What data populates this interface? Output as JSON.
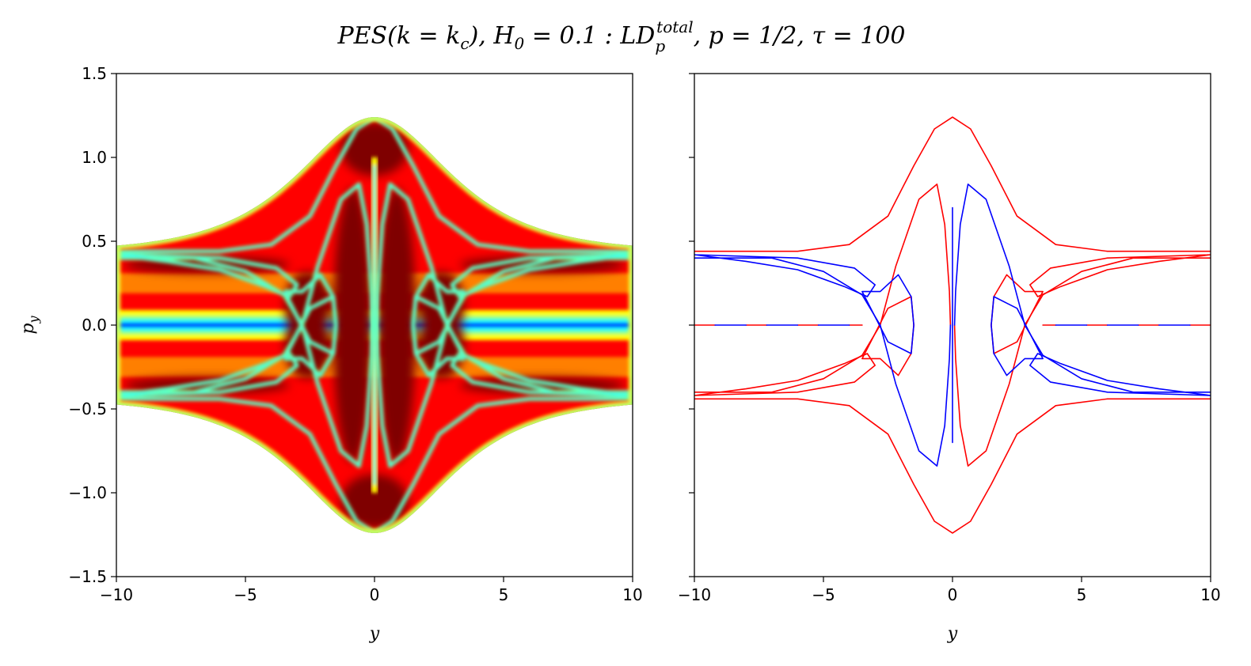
{
  "figure": {
    "title_parts": {
      "pes": "PES",
      "k_open": "(k = k",
      "k_sub": "c",
      "k_close": "), H",
      "h_sub": "0",
      "h_eq": " = 0.1 : LD",
      "ld_sub": "p",
      "ld_sup": "total",
      "rest": ", p = 1/2, τ = 100"
    }
  },
  "chart_data": [
    {
      "type": "heatmap",
      "xlabel": "y",
      "ylabel": "p",
      "ylabel_sub": "y",
      "xlim": [
        -10,
        10
      ],
      "ylim": [
        -1.5,
        1.5
      ],
      "xticks": [
        -10,
        -5,
        0,
        5,
        10
      ],
      "xtick_labels": [
        "−10",
        "−5",
        "0",
        "5",
        "10"
      ],
      "yticks": [
        1.5,
        1.0,
        0.5,
        0.0,
        -0.5,
        -1.0,
        -1.5
      ],
      "ytick_labels": [
        "1.5",
        "1.0",
        "0.5",
        "0.0",
        "−0.5",
        "−1.0",
        "−1.5"
      ],
      "colormap": "jet",
      "energy_boundary": {
        "p_asymptote": 0.44,
        "p_peak": 1.24,
        "y_width": 2.6
      },
      "color_stops": [
        "#00007f",
        "#0000ff",
        "#00ffff",
        "#7fff7f",
        "#ffff00",
        "#ff7f00",
        "#ff0000",
        "#7f0000"
      ]
    },
    {
      "type": "scatter",
      "xlabel": "y",
      "xlim": [
        -10,
        10
      ],
      "ylim": [
        -1.5,
        1.5
      ],
      "xticks": [
        -10,
        -5,
        0,
        5,
        10
      ],
      "xtick_labels": [
        "−10",
        "−5",
        "0",
        "5",
        "10"
      ],
      "yticks": [
        1.5,
        1.0,
        0.5,
        0.0,
        -0.5,
        -1.0,
        -1.5
      ],
      "grid": false,
      "colors": {
        "stable": "#0000ff",
        "unstable": "#ff0000"
      },
      "series": [
        {
          "color": "#ff0000",
          "curves": [
            [
              [
                -10,
                0.44
              ],
              [
                -6,
                0.44
              ],
              [
                -4,
                0.48
              ],
              [
                -2.5,
                0.65
              ],
              [
                -1.5,
                0.95
              ],
              [
                -0.7,
                1.17
              ],
              [
                0,
                1.24
              ],
              [
                0.7,
                1.17
              ],
              [
                1.5,
                0.95
              ],
              [
                2.5,
                0.65
              ],
              [
                4,
                0.48
              ],
              [
                6,
                0.44
              ],
              [
                10,
                0.44
              ]
            ],
            [
              [
                -10,
                -0.44
              ],
              [
                -6,
                -0.44
              ],
              [
                -4,
                -0.48
              ],
              [
                -2.5,
                -0.65
              ],
              [
                -1.5,
                -0.95
              ],
              [
                -0.7,
                -1.17
              ],
              [
                0,
                -1.24
              ],
              [
                0.7,
                -1.17
              ],
              [
                1.5,
                -0.95
              ],
              [
                2.5,
                -0.65
              ],
              [
                4,
                -0.48
              ],
              [
                6,
                -0.44
              ],
              [
                10,
                -0.44
              ]
            ],
            [
              [
                -10,
                -0.4
              ],
              [
                -7,
                -0.4
              ],
              [
                -5,
                -0.32
              ],
              [
                -3.5,
                -0.18
              ],
              [
                -2.8,
                0
              ],
              [
                -2.2,
                0.35
              ],
              [
                -1.3,
                0.75
              ],
              [
                -0.6,
                0.84
              ],
              [
                -0.3,
                0.6
              ],
              [
                -0.12,
                0.2
              ],
              [
                -0.08,
                0
              ]
            ],
            [
              [
                -10,
                -0.42
              ],
              [
                -8,
                -0.38
              ],
              [
                -6,
                -0.33
              ],
              [
                -4.2,
                -0.23
              ],
              [
                -3.3,
                -0.17
              ],
              [
                -3,
                -0.24
              ],
              [
                -3.8,
                -0.34
              ],
              [
                -6,
                -0.4
              ],
              [
                -10,
                -0.42
              ]
            ],
            [
              [
                -3.5,
                -0.2
              ],
              [
                -2.5,
                0.1
              ],
              [
                -1.6,
                0.17
              ],
              [
                -1.5,
                0
              ],
              [
                -1.6,
                -0.17
              ],
              [
                -2.1,
                -0.3
              ],
              [
                -2.8,
                -0.2
              ],
              [
                -3.5,
                -0.2
              ]
            ],
            [
              [
                10,
                0.4
              ],
              [
                7,
                0.4
              ],
              [
                5,
                0.32
              ],
              [
                3.5,
                0.18
              ],
              [
                2.8,
                0
              ],
              [
                2.2,
                -0.35
              ],
              [
                1.3,
                -0.75
              ],
              [
                0.6,
                -0.84
              ],
              [
                0.3,
                -0.6
              ],
              [
                0.12,
                -0.2
              ],
              [
                0.08,
                0
              ]
            ],
            [
              [
                10,
                0.42
              ],
              [
                8,
                0.38
              ],
              [
                6,
                0.33
              ],
              [
                4.2,
                0.23
              ],
              [
                3.3,
                0.17
              ],
              [
                3,
                0.24
              ],
              [
                3.8,
                0.34
              ],
              [
                6,
                0.4
              ],
              [
                10,
                0.42
              ]
            ],
            [
              [
                3.5,
                0.2
              ],
              [
                2.5,
                -0.1
              ],
              [
                1.6,
                -0.17
              ],
              [
                1.5,
                0
              ],
              [
                1.6,
                0.17
              ],
              [
                2.1,
                0.3
              ],
              [
                2.8,
                0.2
              ],
              [
                3.5,
                0.2
              ]
            ],
            [
              [
                -10,
                0
              ],
              [
                -9.2,
                0
              ]
            ],
            [
              [
                -8,
                0
              ],
              [
                -7.2,
                0
              ]
            ],
            [
              [
                -6,
                0
              ],
              [
                -5.2,
                0
              ]
            ],
            [
              [
                -4,
                0
              ],
              [
                -3.5,
                0
              ]
            ],
            [
              [
                3.5,
                0
              ],
              [
                4,
                0
              ]
            ],
            [
              [
                5.2,
                0
              ],
              [
                6,
                0
              ]
            ],
            [
              [
                7.2,
                0
              ],
              [
                8,
                0
              ]
            ],
            [
              [
                9.2,
                0
              ],
              [
                10,
                0
              ]
            ]
          ]
        },
        {
          "color": "#0000ff",
          "curves": [
            [
              [
                -10,
                0.4
              ],
              [
                -7,
                0.4
              ],
              [
                -5,
                0.32
              ],
              [
                -3.5,
                0.18
              ],
              [
                -2.8,
                0
              ],
              [
                -2.2,
                -0.35
              ],
              [
                -1.3,
                -0.75
              ],
              [
                -0.6,
                -0.84
              ],
              [
                -0.3,
                -0.6
              ],
              [
                -0.12,
                -0.2
              ],
              [
                -0.08,
                0
              ]
            ],
            [
              [
                -10,
                0.42
              ],
              [
                -8,
                0.38
              ],
              [
                -6,
                0.33
              ],
              [
                -4.2,
                0.23
              ],
              [
                -3.3,
                0.17
              ],
              [
                -3,
                0.24
              ],
              [
                -3.8,
                0.34
              ],
              [
                -6,
                0.4
              ],
              [
                -10,
                0.42
              ]
            ],
            [
              [
                -3.5,
                0.2
              ],
              [
                -2.5,
                -0.1
              ],
              [
                -1.6,
                -0.17
              ],
              [
                -1.5,
                0
              ],
              [
                -1.6,
                0.17
              ],
              [
                -2.1,
                0.3
              ],
              [
                -2.8,
                0.2
              ],
              [
                -3.5,
                0.2
              ]
            ],
            [
              [
                10,
                -0.4
              ],
              [
                7,
                -0.4
              ],
              [
                5,
                -0.32
              ],
              [
                3.5,
                -0.18
              ],
              [
                2.8,
                0
              ],
              [
                2.2,
                0.35
              ],
              [
                1.3,
                0.75
              ],
              [
                0.6,
                0.84
              ],
              [
                0.3,
                0.6
              ],
              [
                0.12,
                0.2
              ],
              [
                0.08,
                0
              ]
            ],
            [
              [
                10,
                -0.42
              ],
              [
                8,
                -0.38
              ],
              [
                6,
                -0.33
              ],
              [
                4.2,
                -0.23
              ],
              [
                3.3,
                -0.17
              ],
              [
                3,
                -0.24
              ],
              [
                3.8,
                -0.34
              ],
              [
                6,
                -0.4
              ],
              [
                10,
                -0.42
              ]
            ],
            [
              [
                3.5,
                -0.2
              ],
              [
                2.5,
                0.1
              ],
              [
                1.6,
                0.17
              ],
              [
                1.5,
                0
              ],
              [
                1.6,
                -0.17
              ],
              [
                2.1,
                -0.3
              ],
              [
                2.8,
                -0.2
              ],
              [
                3.5,
                -0.2
              ]
            ],
            [
              [
                -9.2,
                0
              ],
              [
                -8,
                0
              ]
            ],
            [
              [
                -7.2,
                0
              ],
              [
                -6,
                0
              ]
            ],
            [
              [
                -5.2,
                0
              ],
              [
                -4,
                0
              ]
            ],
            [
              [
                4,
                0
              ],
              [
                5.2,
                0
              ]
            ],
            [
              [
                6,
                0
              ],
              [
                7.2,
                0
              ]
            ],
            [
              [
                8,
                0
              ],
              [
                9.2,
                0
              ]
            ],
            [
              [
                0,
                -0.7
              ],
              [
                0,
                0.7
              ]
            ]
          ]
        }
      ]
    }
  ]
}
